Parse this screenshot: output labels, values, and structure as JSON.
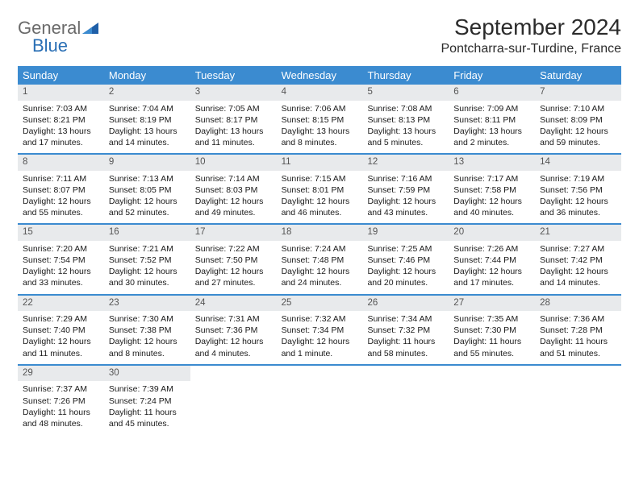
{
  "logo": {
    "part1": "General",
    "part2": "Blue",
    "color_general": "#6a6a6a",
    "color_blue": "#2a6fb5",
    "triangle_color": "#1f5fa8"
  },
  "header": {
    "month_title": "September 2024",
    "location": "Pontcharra-sur-Turdine, France"
  },
  "styling": {
    "header_bg": "#3b8bd0",
    "header_text_color": "#ffffff",
    "daynum_bg": "#e8eaec",
    "daynum_color": "#555555",
    "week_border": "#3b8bd0",
    "body_text_color": "#1a1a1a",
    "font_family": "Arial",
    "month_title_fontsize": 28,
    "location_fontsize": 16,
    "dayheader_fontsize": 13,
    "daynum_fontsize": 11.5,
    "body_fontsize": 10.5
  },
  "day_names": [
    "Sunday",
    "Monday",
    "Tuesday",
    "Wednesday",
    "Thursday",
    "Friday",
    "Saturday"
  ],
  "weeks": [
    [
      {
        "n": "1",
        "sr": "Sunrise: 7:03 AM",
        "ss": "Sunset: 8:21 PM",
        "dl": "Daylight: 13 hours and 17 minutes."
      },
      {
        "n": "2",
        "sr": "Sunrise: 7:04 AM",
        "ss": "Sunset: 8:19 PM",
        "dl": "Daylight: 13 hours and 14 minutes."
      },
      {
        "n": "3",
        "sr": "Sunrise: 7:05 AM",
        "ss": "Sunset: 8:17 PM",
        "dl": "Daylight: 13 hours and 11 minutes."
      },
      {
        "n": "4",
        "sr": "Sunrise: 7:06 AM",
        "ss": "Sunset: 8:15 PM",
        "dl": "Daylight: 13 hours and 8 minutes."
      },
      {
        "n": "5",
        "sr": "Sunrise: 7:08 AM",
        "ss": "Sunset: 8:13 PM",
        "dl": "Daylight: 13 hours and 5 minutes."
      },
      {
        "n": "6",
        "sr": "Sunrise: 7:09 AM",
        "ss": "Sunset: 8:11 PM",
        "dl": "Daylight: 13 hours and 2 minutes."
      },
      {
        "n": "7",
        "sr": "Sunrise: 7:10 AM",
        "ss": "Sunset: 8:09 PM",
        "dl": "Daylight: 12 hours and 59 minutes."
      }
    ],
    [
      {
        "n": "8",
        "sr": "Sunrise: 7:11 AM",
        "ss": "Sunset: 8:07 PM",
        "dl": "Daylight: 12 hours and 55 minutes."
      },
      {
        "n": "9",
        "sr": "Sunrise: 7:13 AM",
        "ss": "Sunset: 8:05 PM",
        "dl": "Daylight: 12 hours and 52 minutes."
      },
      {
        "n": "10",
        "sr": "Sunrise: 7:14 AM",
        "ss": "Sunset: 8:03 PM",
        "dl": "Daylight: 12 hours and 49 minutes."
      },
      {
        "n": "11",
        "sr": "Sunrise: 7:15 AM",
        "ss": "Sunset: 8:01 PM",
        "dl": "Daylight: 12 hours and 46 minutes."
      },
      {
        "n": "12",
        "sr": "Sunrise: 7:16 AM",
        "ss": "Sunset: 7:59 PM",
        "dl": "Daylight: 12 hours and 43 minutes."
      },
      {
        "n": "13",
        "sr": "Sunrise: 7:17 AM",
        "ss": "Sunset: 7:58 PM",
        "dl": "Daylight: 12 hours and 40 minutes."
      },
      {
        "n": "14",
        "sr": "Sunrise: 7:19 AM",
        "ss": "Sunset: 7:56 PM",
        "dl": "Daylight: 12 hours and 36 minutes."
      }
    ],
    [
      {
        "n": "15",
        "sr": "Sunrise: 7:20 AM",
        "ss": "Sunset: 7:54 PM",
        "dl": "Daylight: 12 hours and 33 minutes."
      },
      {
        "n": "16",
        "sr": "Sunrise: 7:21 AM",
        "ss": "Sunset: 7:52 PM",
        "dl": "Daylight: 12 hours and 30 minutes."
      },
      {
        "n": "17",
        "sr": "Sunrise: 7:22 AM",
        "ss": "Sunset: 7:50 PM",
        "dl": "Daylight: 12 hours and 27 minutes."
      },
      {
        "n": "18",
        "sr": "Sunrise: 7:24 AM",
        "ss": "Sunset: 7:48 PM",
        "dl": "Daylight: 12 hours and 24 minutes."
      },
      {
        "n": "19",
        "sr": "Sunrise: 7:25 AM",
        "ss": "Sunset: 7:46 PM",
        "dl": "Daylight: 12 hours and 20 minutes."
      },
      {
        "n": "20",
        "sr": "Sunrise: 7:26 AM",
        "ss": "Sunset: 7:44 PM",
        "dl": "Daylight: 12 hours and 17 minutes."
      },
      {
        "n": "21",
        "sr": "Sunrise: 7:27 AM",
        "ss": "Sunset: 7:42 PM",
        "dl": "Daylight: 12 hours and 14 minutes."
      }
    ],
    [
      {
        "n": "22",
        "sr": "Sunrise: 7:29 AM",
        "ss": "Sunset: 7:40 PM",
        "dl": "Daylight: 12 hours and 11 minutes."
      },
      {
        "n": "23",
        "sr": "Sunrise: 7:30 AM",
        "ss": "Sunset: 7:38 PM",
        "dl": "Daylight: 12 hours and 8 minutes."
      },
      {
        "n": "24",
        "sr": "Sunrise: 7:31 AM",
        "ss": "Sunset: 7:36 PM",
        "dl": "Daylight: 12 hours and 4 minutes."
      },
      {
        "n": "25",
        "sr": "Sunrise: 7:32 AM",
        "ss": "Sunset: 7:34 PM",
        "dl": "Daylight: 12 hours and 1 minute."
      },
      {
        "n": "26",
        "sr": "Sunrise: 7:34 AM",
        "ss": "Sunset: 7:32 PM",
        "dl": "Daylight: 11 hours and 58 minutes."
      },
      {
        "n": "27",
        "sr": "Sunrise: 7:35 AM",
        "ss": "Sunset: 7:30 PM",
        "dl": "Daylight: 11 hours and 55 minutes."
      },
      {
        "n": "28",
        "sr": "Sunrise: 7:36 AM",
        "ss": "Sunset: 7:28 PM",
        "dl": "Daylight: 11 hours and 51 minutes."
      }
    ],
    [
      {
        "n": "29",
        "sr": "Sunrise: 7:37 AM",
        "ss": "Sunset: 7:26 PM",
        "dl": "Daylight: 11 hours and 48 minutes."
      },
      {
        "n": "30",
        "sr": "Sunrise: 7:39 AM",
        "ss": "Sunset: 7:24 PM",
        "dl": "Daylight: 11 hours and 45 minutes."
      },
      null,
      null,
      null,
      null,
      null
    ]
  ]
}
